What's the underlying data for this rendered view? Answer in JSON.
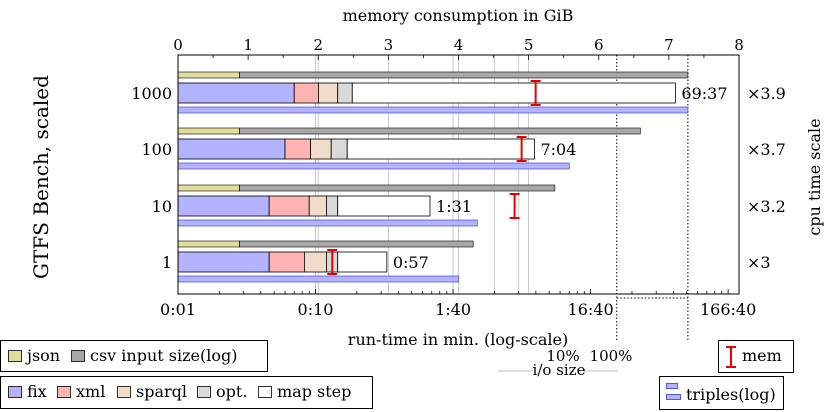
{
  "chart_data": {
    "type": "bar",
    "orientation": "horizontal",
    "title_top_axis": "memory consumption in GiB",
    "xlabel": "run-time in min. (log-scale)",
    "ylabel_left": "GTFS Bench, scaled",
    "ylabel_right": "cpu time scale",
    "top_axis": {
      "min": 0,
      "max": 8,
      "ticks": [
        "0",
        "1",
        "2",
        "3",
        "4",
        "5",
        "6",
        "7",
        "8"
      ]
    },
    "bottom_axis": {
      "scale": "log",
      "min_seconds": 1,
      "max_seconds": 12000,
      "ticks": [
        {
          "seconds": 1,
          "label": "0:01"
        },
        {
          "seconds": 10,
          "label": "0:10"
        },
        {
          "seconds": 100,
          "label": "1:40"
        },
        {
          "seconds": 1000,
          "label": "16:40"
        },
        {
          "seconds": 10000,
          "label": "166:40"
        }
      ]
    },
    "io_size": {
      "label": "i/o size",
      "marks": [
        "10%",
        "100%"
      ]
    },
    "categories": [
      "1000",
      "100",
      "10",
      "1"
    ],
    "cpu_scale": [
      "×3.9",
      "×3.7",
      "×3.2",
      "×3"
    ],
    "run_time_labels": [
      "69:37",
      "7:04",
      "1:31",
      "0:57"
    ],
    "series": [
      {
        "name": "fix",
        "color": "#b3b3ff",
        "values": [
          7.0,
          6.0,
          4.6,
          4.6
        ]
      },
      {
        "name": "xml",
        "color": "#ffb3b3",
        "values": [
          10.5,
          9.2,
          9.0,
          8.3
        ]
      },
      {
        "name": "sparql",
        "color": "#f0dcc8",
        "values": [
          14.5,
          13.0,
          12.0,
          12.0
        ]
      },
      {
        "name": "opt.",
        "color": "#d9d9d9",
        "values": [
          18.5,
          17.0,
          14.5,
          14.5
        ]
      },
      {
        "name": "map step",
        "color": "#ffffff",
        "values": [
          4137,
          391,
          68,
          33
        ]
      }
    ],
    "memory_gib": [
      5.1,
      4.9,
      4.8,
      2.2
    ],
    "input_size": {
      "json_end_seconds": [
        2.8,
        2.8,
        2.8,
        2.8
      ],
      "csv_end_seconds": [
        5100,
        2300,
        550,
        140
      ]
    },
    "triples_end_seconds": [
      5100,
      700,
      150,
      110
    ],
    "legend": {
      "input": [
        "json",
        "csv input size(log)"
      ],
      "steps": [
        "fix",
        "xml",
        "sparql",
        "opt.",
        "map step"
      ],
      "mem": "mem",
      "triples": "triples(log)"
    },
    "colors": {
      "fix": "#b3b3ff",
      "xml": "#ffb3b3",
      "sparql": "#f0dcc8",
      "opt": "#d9d9d9",
      "map": "#ffffff",
      "json": "#e0dc99",
      "csv": "#a8a8a8",
      "triples": "#b3b3ff",
      "triples_edge": "#3333cc",
      "mem": "#e60000",
      "grid": "#bdbdbd"
    }
  }
}
